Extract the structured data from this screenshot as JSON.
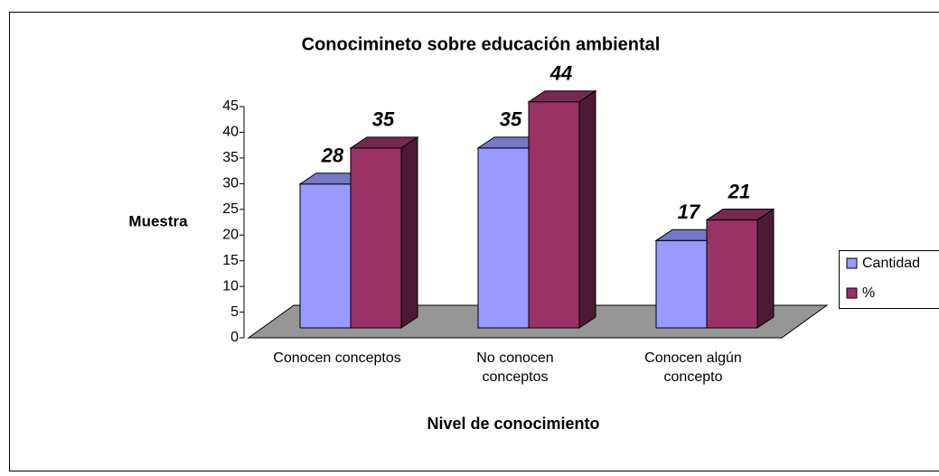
{
  "chart_data": {
    "type": "bar3d",
    "title": "Conocimineto sobre educación ambiental",
    "y_label": "Muestra",
    "x_label": "Nivel de conocimiento",
    "categories": [
      "Conocen conceptos",
      "No conocen conceptos",
      "Conocen algún concepto"
    ],
    "series": [
      {
        "name": "Cantidad",
        "color": "#9999ff",
        "values": [
          28,
          35,
          17
        ]
      },
      {
        "name": "%",
        "color": "#993366",
        "values": [
          35,
          44,
          21
        ]
      }
    ],
    "ylim": [
      0,
      45
    ],
    "yticks": [
      0,
      5,
      10,
      15,
      20,
      25,
      30,
      35,
      40,
      45
    ],
    "legend": "right"
  }
}
